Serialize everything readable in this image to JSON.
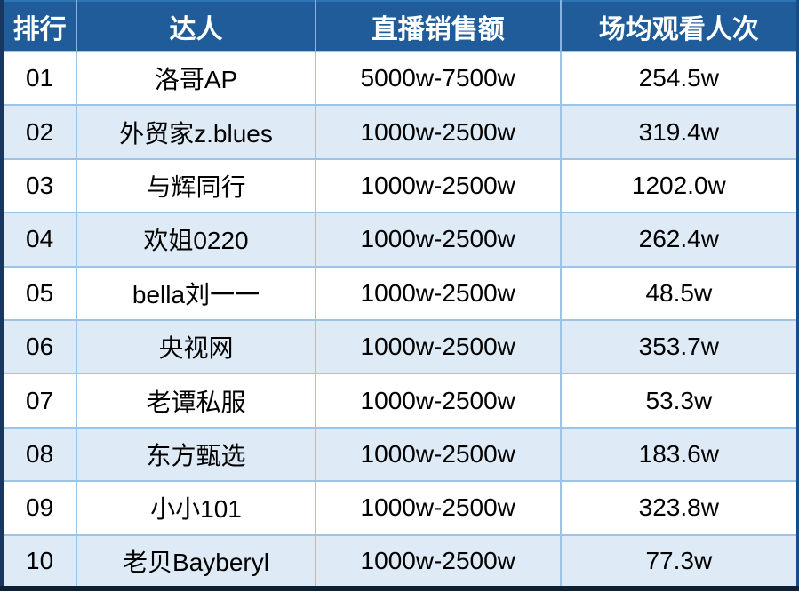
{
  "chart_data": {
    "type": "table",
    "columns": [
      "排行",
      "达人",
      "直播销售额",
      "场均观看人次"
    ],
    "rows": [
      [
        "01",
        "洛哥AP",
        "5000w-7500w",
        "254.5w"
      ],
      [
        "02",
        "外贸家z.blues",
        "1000w-2500w",
        "319.4w"
      ],
      [
        "03",
        "与辉同行",
        "1000w-2500w",
        "1202.0w"
      ],
      [
        "04",
        "欢姐0220",
        "1000w-2500w",
        "262.4w"
      ],
      [
        "05",
        "bella刘一一",
        "1000w-2500w",
        "48.5w"
      ],
      [
        "06",
        "央视网",
        "1000w-2500w",
        "353.7w"
      ],
      [
        "07",
        "老谭私服",
        "1000w-2500w",
        "53.3w"
      ],
      [
        "08",
        "东方甄选",
        "1000w-2500w",
        "183.6w"
      ],
      [
        "09",
        "小小101",
        "1000w-2500w",
        "323.8w"
      ],
      [
        "10",
        "老贝Bayberyl",
        "1000w-2500w",
        "77.3w"
      ]
    ],
    "layout": {
      "header_row": true,
      "zebra_striping": true,
      "row_count": 10
    }
  },
  "colors": {
    "header_bg": "#1F5C99",
    "header_text": "#FFFFFF",
    "row_bg": "#FFFFFF",
    "row_alt_bg": "#DEEBF7",
    "grid_line": "#9DC3E6",
    "header_separator": "#85B5E0",
    "outer_border_left": "#17375E",
    "outer_border_right": "#174E85",
    "outer_border_bottom": "#0D2036",
    "outer_border_top": "#2E75B6",
    "body_text": "#000000"
  },
  "cell_names": [
    "rank-cell",
    "name-cell",
    "sales-cell",
    "views-cell"
  ]
}
